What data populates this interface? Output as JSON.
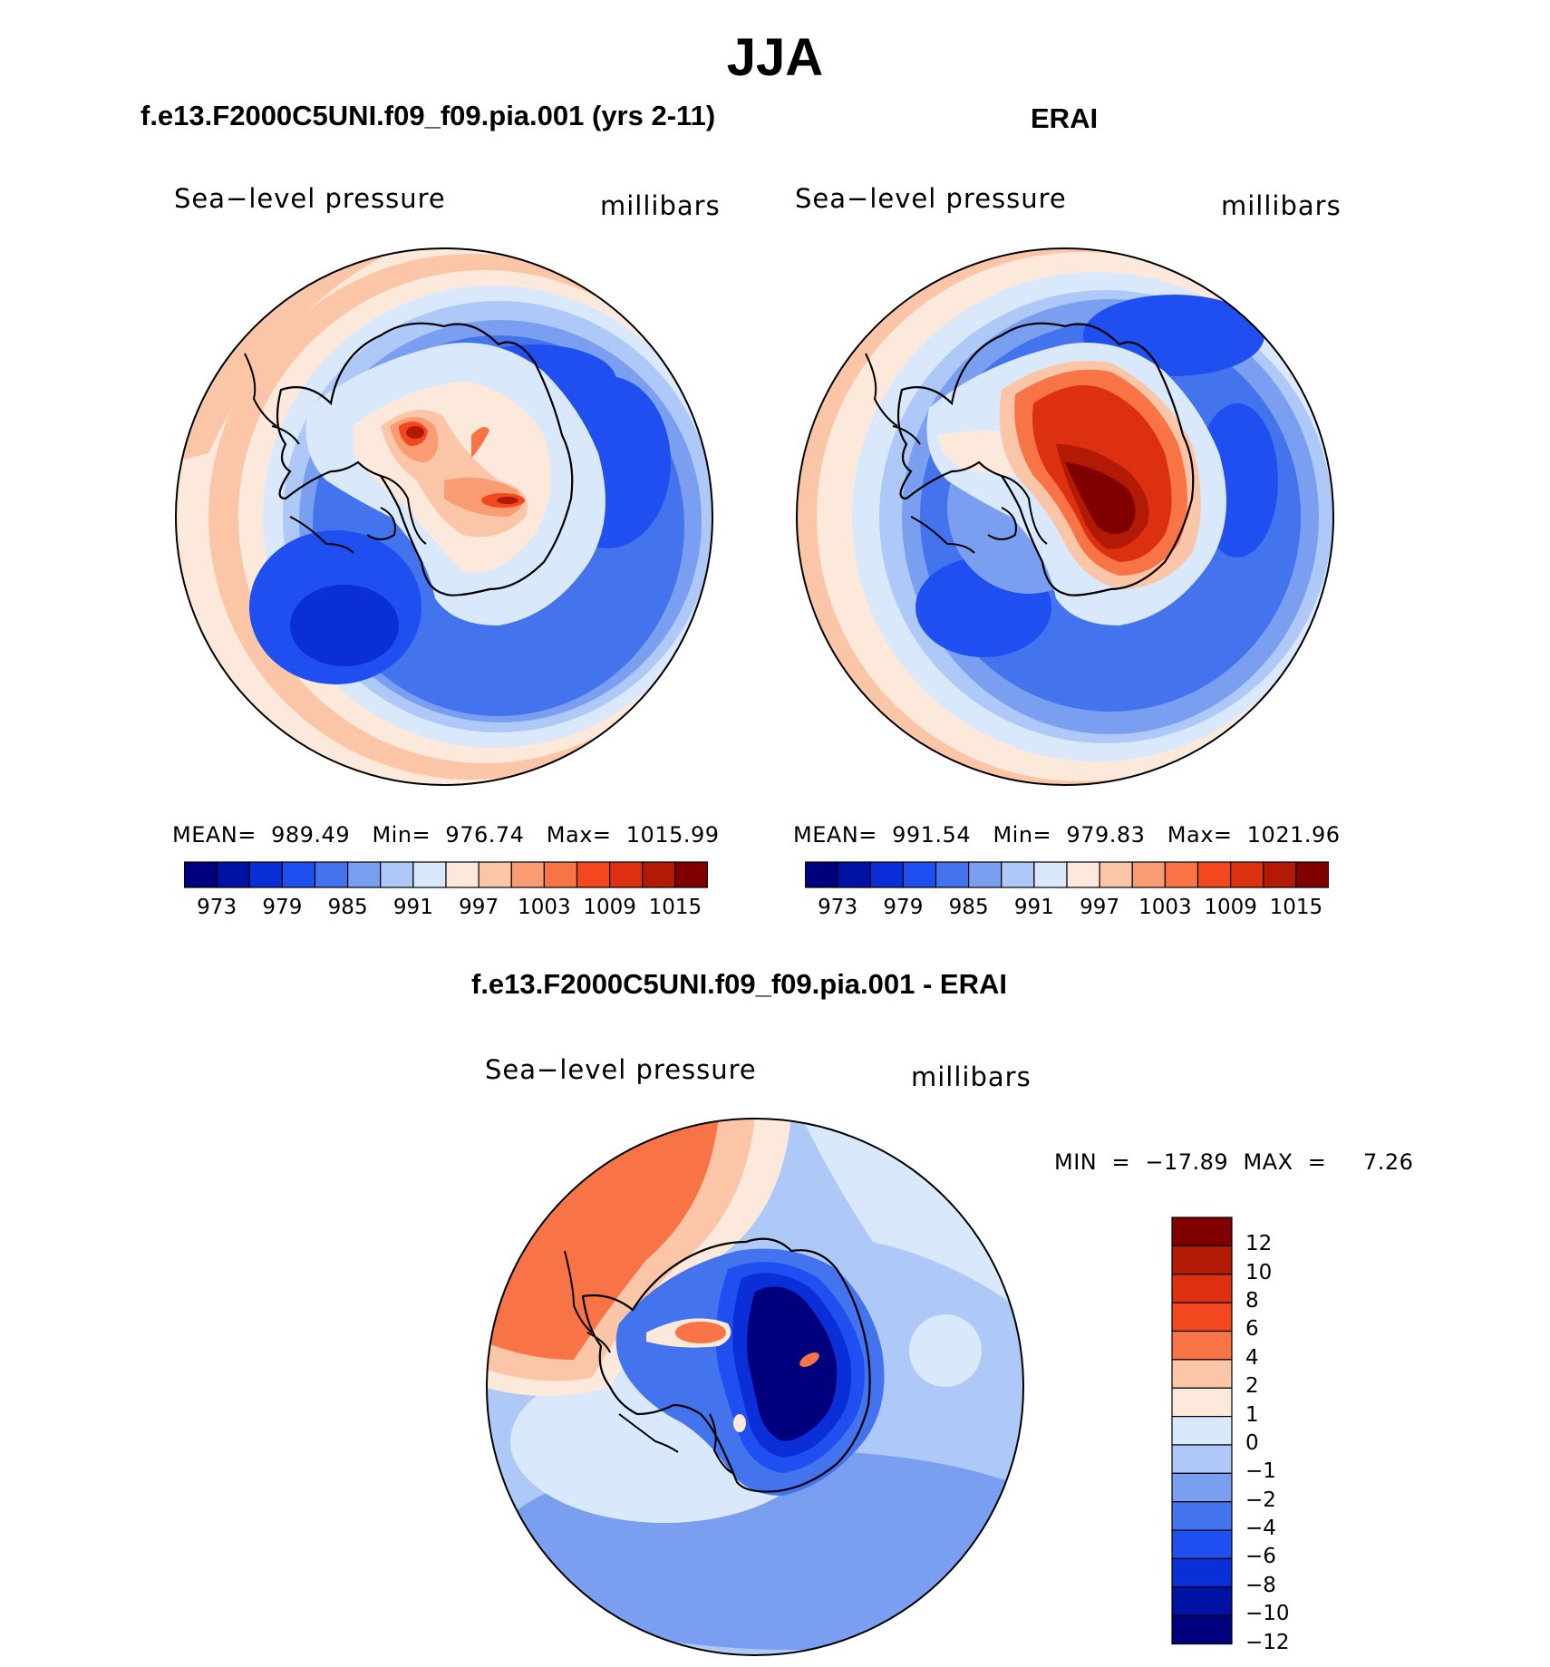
{
  "figure": {
    "title": "JJA",
    "variable_label": "Sea−level pressure",
    "units_label": "millibars"
  },
  "panels": [
    {
      "id": "model",
      "title": "f.e13.F2000C5UNI.f09_f09.pia.001 (yrs 2-11)",
      "stats": "MEAN=  989.49   Min=  976.74   Max=  1015.99"
    },
    {
      "id": "obs",
      "title": "ERAI",
      "stats": "MEAN=  991.54   Min=  979.83   Max=  1021.96"
    },
    {
      "id": "diff",
      "title": "f.e13.F2000C5UNI.f09_f09.pia.001 - ERAI",
      "stats": "MIN  =  −17.89  MAX  =     7.26"
    }
  ],
  "abs_colorbar": {
    "colors": [
      "#00007f",
      "#0011a6",
      "#0a2ed8",
      "#1f4ff0",
      "#4473ee",
      "#7b9ff0",
      "#aec8f7",
      "#d9e8fb",
      "#fde9dc",
      "#fbc6a8",
      "#f99c73",
      "#f87346",
      "#f3481f",
      "#dc3010",
      "#b21a06",
      "#800000"
    ],
    "tick_labels": [
      "973",
      "979",
      "985",
      "991",
      "997",
      "1003",
      "1009",
      "1015"
    ]
  },
  "diff_colorbar": {
    "colors": [
      "#800000",
      "#b21a06",
      "#dc3010",
      "#f3481f",
      "#f87346",
      "#fbc6a8",
      "#fde9dc",
      "#d9e8fb",
      "#aec8f7",
      "#7b9ff0",
      "#4473ee",
      "#1f4ff0",
      "#0a2ed8",
      "#0011a6",
      "#00007f"
    ],
    "tick_labels": [
      "12",
      "10",
      "8",
      "6",
      "4",
      "2",
      "1",
      "0",
      "−1",
      "−2",
      "−4",
      "−6",
      "−8",
      "−10",
      "−12"
    ]
  }
}
